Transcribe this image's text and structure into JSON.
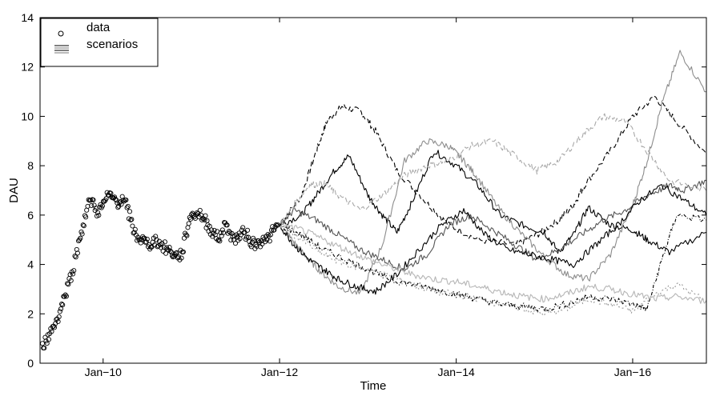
{
  "chart_data": {
    "type": "line",
    "xlabel": "Time",
    "ylabel": "DAU",
    "xlim": [
      "2009-04-15",
      "2016-11-01"
    ],
    "ylim": [
      0,
      14
    ],
    "xticks": [
      {
        "date": "2010-01-01",
        "label": "Jan−10"
      },
      {
        "date": "2012-01-01",
        "label": "Jan−12"
      },
      {
        "date": "2014-01-01",
        "label": "Jan−14"
      },
      {
        "date": "2016-01-01",
        "label": "Jan−16"
      }
    ],
    "yticks": [
      0,
      2,
      4,
      6,
      8,
      10,
      12,
      14
    ],
    "grid": false,
    "legend": {
      "placement": "top-left",
      "entries": [
        {
          "label": "data",
          "marker": "circle"
        },
        {
          "label": "scenarios",
          "marker": "lines"
        }
      ]
    },
    "data_series": {
      "name": "data",
      "style": "markers",
      "points": [
        [
          "2009-04-25",
          0.8
        ],
        [
          "2009-05-10",
          0.9
        ],
        [
          "2009-05-25",
          1.2
        ],
        [
          "2009-06-10",
          1.5
        ],
        [
          "2009-06-25",
          1.8
        ],
        [
          "2009-07-10",
          2.2
        ],
        [
          "2009-07-25",
          2.7
        ],
        [
          "2009-08-10",
          3.2
        ],
        [
          "2009-08-25",
          3.7
        ],
        [
          "2009-09-10",
          4.3
        ],
        [
          "2009-09-25",
          5.0
        ],
        [
          "2009-10-10",
          5.6
        ],
        [
          "2009-10-25",
          6.2
        ],
        [
          "2009-11-10",
          6.6
        ],
        [
          "2009-11-25",
          6.4
        ],
        [
          "2009-12-10",
          6.1
        ],
        [
          "2009-12-25",
          6.3
        ],
        [
          "2010-01-10",
          6.6
        ],
        [
          "2010-01-25",
          6.8
        ],
        [
          "2010-02-10",
          6.7
        ],
        [
          "2010-02-25",
          6.6
        ],
        [
          "2010-03-10",
          6.5
        ],
        [
          "2010-03-25",
          6.6
        ],
        [
          "2010-04-10",
          6.3
        ],
        [
          "2010-04-25",
          5.8
        ],
        [
          "2010-05-10",
          5.3
        ],
        [
          "2010-05-25",
          5.1
        ],
        [
          "2010-06-10",
          5.0
        ],
        [
          "2010-06-25",
          4.9
        ],
        [
          "2010-07-10",
          4.8
        ],
        [
          "2010-07-25",
          4.9
        ],
        [
          "2010-08-10",
          5.0
        ],
        [
          "2010-08-25",
          4.8
        ],
        [
          "2010-09-10",
          4.7
        ],
        [
          "2010-09-25",
          4.6
        ],
        [
          "2010-10-10",
          4.5
        ],
        [
          "2010-10-25",
          4.4
        ],
        [
          "2010-11-10",
          4.3
        ],
        [
          "2010-11-25",
          4.5
        ],
        [
          "2010-12-10",
          5.2
        ],
        [
          "2010-12-25",
          5.9
        ],
        [
          "2011-01-10",
          6.0
        ],
        [
          "2011-01-25",
          6.1
        ],
        [
          "2011-02-10",
          6.0
        ],
        [
          "2011-02-25",
          5.8
        ],
        [
          "2011-03-10",
          5.6
        ],
        [
          "2011-03-25",
          5.4
        ],
        [
          "2011-04-10",
          5.2
        ],
        [
          "2011-04-25",
          5.0
        ],
        [
          "2011-05-10",
          5.4
        ],
        [
          "2011-05-25",
          5.6
        ],
        [
          "2011-06-10",
          5.3
        ],
        [
          "2011-06-25",
          5.0
        ],
        [
          "2011-07-10",
          5.1
        ],
        [
          "2011-07-25",
          5.2
        ],
        [
          "2011-08-10",
          5.3
        ],
        [
          "2011-08-25",
          5.1
        ],
        [
          "2011-09-10",
          4.9
        ],
        [
          "2011-09-25",
          4.8
        ],
        [
          "2011-10-10",
          4.9
        ],
        [
          "2011-10-25",
          5.1
        ],
        [
          "2011-11-10",
          5.0
        ],
        [
          "2011-11-25",
          5.2
        ],
        [
          "2011-12-10",
          5.4
        ],
        [
          "2011-12-25",
          5.6
        ]
      ]
    },
    "series": [
      {
        "color": "#000000",
        "dash": "6,3",
        "x": [
          "2012-01-01",
          "2012-04-01",
          "2012-06-01",
          "2012-07-15",
          "2012-09-15",
          "2012-12-01",
          "2013-02-01",
          "2013-05-01",
          "2013-09-01",
          "2013-12-01",
          "2014-04-01",
          "2014-09-01",
          "2014-12-01",
          "2015-03-01",
          "2015-05-01",
          "2015-06-15",
          "2015-10-01",
          "2016-01-01",
          "2016-04-01",
          "2016-07-01",
          "2016-10-31"
        ],
        "y": [
          5.6,
          6.8,
          8.6,
          9.8,
          10.4,
          10.2,
          9.4,
          7.8,
          6.5,
          5.6,
          5.0,
          4.8,
          5.2,
          5.8,
          6.4,
          7.2,
          8.6,
          10.0,
          10.8,
          9.8,
          8.5
        ]
      },
      {
        "color": "#000000",
        "dash": "",
        "x": [
          "2012-01-01",
          "2012-04-01",
          "2012-06-01",
          "2012-08-15",
          "2012-10-15",
          "2013-01-01",
          "2013-03-01",
          "2013-05-01",
          "2013-07-01",
          "2013-10-01",
          "2014-01-01",
          "2014-04-01",
          "2014-07-01",
          "2014-10-01",
          "2015-01-01",
          "2015-03-01",
          "2015-05-01",
          "2015-07-01",
          "2015-10-01",
          "2016-01-01",
          "2016-03-01",
          "2016-06-01",
          "2016-10-31"
        ],
        "y": [
          5.6,
          6.0,
          6.8,
          7.8,
          8.4,
          6.8,
          6.0,
          5.3,
          6.5,
          8.6,
          8.0,
          7.2,
          6.0,
          5.6,
          5.3,
          4.5,
          5.2,
          6.3,
          5.6,
          5.4,
          5.0,
          4.5,
          5.3
        ]
      },
      {
        "color": "#8c8c8c",
        "dash": "",
        "x": [
          "2012-01-01",
          "2012-03-01",
          "2012-05-01",
          "2012-07-01",
          "2012-09-01",
          "2012-12-01",
          "2013-03-01",
          "2013-06-01",
          "2013-09-01",
          "2013-12-01",
          "2014-02-01",
          "2014-04-01",
          "2014-07-01",
          "2014-10-01",
          "2015-01-01",
          "2015-04-01",
          "2015-07-01",
          "2015-10-01",
          "2016-01-01",
          "2016-03-01",
          "2016-05-01",
          "2016-07-15",
          "2016-10-31"
        ],
        "y": [
          5.6,
          4.9,
          4.2,
          3.6,
          3.1,
          2.8,
          4.8,
          8.2,
          9.0,
          8.8,
          8.2,
          7.5,
          6.2,
          5.2,
          4.3,
          3.6,
          3.4,
          4.4,
          6.4,
          8.2,
          10.5,
          12.6,
          11.0
        ]
      },
      {
        "color": "#555555",
        "dash": "",
        "x": [
          "2012-01-01",
          "2012-03-01",
          "2012-06-01",
          "2012-09-01",
          "2012-12-01",
          "2013-03-01",
          "2013-06-01",
          "2013-09-01",
          "2013-12-01",
          "2014-03-01",
          "2014-06-01",
          "2014-09-01",
          "2014-12-01",
          "2015-03-01",
          "2015-06-01",
          "2015-09-01",
          "2015-12-01",
          "2016-03-01",
          "2016-06-01",
          "2016-08-01",
          "2016-10-31"
        ],
        "y": [
          5.6,
          6.2,
          5.8,
          5.2,
          4.6,
          4.2,
          3.8,
          4.4,
          5.6,
          6.0,
          5.4,
          4.8,
          4.2,
          4.6,
          5.2,
          5.8,
          6.2,
          6.8,
          7.2,
          7.0,
          7.4
        ]
      },
      {
        "color": "#a8a8a8",
        "dash": "6,3",
        "x": [
          "2012-01-01",
          "2012-03-01",
          "2012-05-01",
          "2012-07-01",
          "2012-09-01",
          "2012-12-01",
          "2013-03-01",
          "2013-06-01",
          "2013-09-01",
          "2013-12-01",
          "2014-03-01",
          "2014-06-01",
          "2014-09-01",
          "2014-12-01",
          "2015-03-01",
          "2015-06-01",
          "2015-09-01",
          "2015-12-01",
          "2016-03-01",
          "2016-06-01",
          "2016-10-31"
        ],
        "y": [
          5.6,
          6.4,
          7.2,
          7.3,
          6.8,
          6.2,
          6.8,
          7.6,
          8.0,
          8.2,
          8.8,
          9.0,
          8.4,
          7.8,
          8.2,
          9.2,
          10.0,
          9.8,
          8.6,
          7.4,
          7.0
        ]
      },
      {
        "color": "#000000",
        "dash": "",
        "x": [
          "2012-01-01",
          "2012-03-01",
          "2012-05-01",
          "2012-07-01",
          "2012-09-01",
          "2012-11-15",
          "2013-02-01",
          "2013-05-01",
          "2013-08-01",
          "2013-11-01",
          "2014-02-01",
          "2014-05-01",
          "2014-08-01",
          "2014-11-01",
          "2015-02-01",
          "2015-05-01",
          "2015-08-01",
          "2015-11-01",
          "2016-02-01",
          "2016-05-01",
          "2016-08-01",
          "2016-10-31"
        ],
        "y": [
          5.6,
          4.8,
          4.2,
          3.8,
          3.4,
          3.1,
          2.9,
          3.6,
          4.6,
          5.6,
          6.2,
          5.2,
          4.6,
          4.4,
          4.2,
          4.0,
          4.8,
          5.6,
          6.6,
          7.2,
          6.6,
          6.0
        ]
      },
      {
        "color": "#9a9a9a",
        "dash": "2,3",
        "x": [
          "2012-01-01",
          "2012-04-01",
          "2012-07-01",
          "2012-10-01",
          "2013-01-01",
          "2013-04-01",
          "2013-07-01",
          "2013-10-01",
          "2014-01-01",
          "2014-04-01",
          "2014-07-01",
          "2014-10-01",
          "2015-01-01",
          "2015-04-01",
          "2015-07-01",
          "2015-10-01",
          "2016-01-01",
          "2016-04-01",
          "2016-07-01",
          "2016-10-31"
        ],
        "y": [
          5.6,
          5.0,
          4.4,
          4.0,
          3.8,
          3.5,
          3.2,
          2.9,
          2.8,
          2.6,
          2.4,
          2.2,
          2.0,
          2.2,
          2.6,
          2.4,
          2.1,
          2.8,
          3.2,
          2.5
        ]
      },
      {
        "color": "#000000",
        "dash": "4,2,1,2",
        "x": [
          "2012-01-01",
          "2012-04-01",
          "2012-07-01",
          "2012-10-01",
          "2013-01-01",
          "2013-04-01",
          "2013-07-01",
          "2013-10-01",
          "2014-01-01",
          "2014-04-01",
          "2014-07-01",
          "2014-10-01",
          "2015-01-01",
          "2015-04-01",
          "2015-07-01",
          "2015-10-01",
          "2016-01-01",
          "2016-03-01",
          "2016-05-01",
          "2016-07-01",
          "2016-10-31"
        ],
        "y": [
          5.6,
          5.2,
          4.6,
          4.2,
          3.8,
          3.4,
          3.2,
          3.0,
          2.8,
          2.6,
          2.4,
          2.3,
          2.2,
          2.4,
          2.7,
          2.6,
          2.4,
          2.2,
          4.2,
          6.0,
          5.8
        ]
      },
      {
        "color": "#b5b5b5",
        "dash": "",
        "x": [
          "2012-01-01",
          "2012-04-01",
          "2012-07-01",
          "2012-10-01",
          "2013-01-01",
          "2013-04-01",
          "2013-07-01",
          "2013-10-01",
          "2014-01-01",
          "2014-04-01",
          "2014-07-01",
          "2014-10-01",
          "2015-01-01",
          "2015-04-01",
          "2015-07-01",
          "2015-10-01",
          "2016-01-01",
          "2016-04-01",
          "2016-07-01",
          "2016-10-31"
        ],
        "y": [
          5.6,
          5.4,
          5.0,
          4.6,
          4.2,
          3.9,
          3.6,
          3.4,
          3.3,
          3.1,
          2.9,
          2.7,
          2.6,
          2.8,
          3.1,
          3.0,
          2.8,
          2.6,
          2.7,
          2.5
        ]
      }
    ]
  }
}
